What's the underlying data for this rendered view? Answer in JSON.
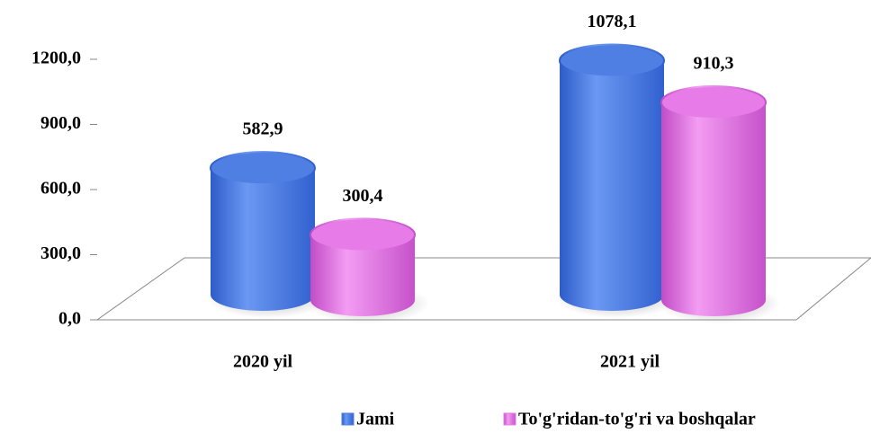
{
  "chart_data": {
    "type": "cylinder-bar",
    "categories": [
      "2020 yil",
      "2021 yil"
    ],
    "series": [
      {
        "name": "Jami",
        "color": "#4f7fe3",
        "values": [
          582.9,
          1078.1
        ],
        "value_labels": [
          "582,9",
          "1078,1"
        ]
      },
      {
        "name": "To'g'ridan-to'g'ri va boshqalar",
        "color": "#e77be8",
        "values": [
          300.4,
          910.3
        ],
        "value_labels": [
          "300,4",
          "910,3"
        ]
      }
    ],
    "ylim": [
      0,
      1200
    ],
    "yticks": [
      {
        "value": 0,
        "label": "0,0"
      },
      {
        "value": 300,
        "label": "300,0"
      },
      {
        "value": 600,
        "label": "600,0"
      },
      {
        "value": 900,
        "label": "900,0"
      },
      {
        "value": 1200,
        "label": "1200,0"
      }
    ],
    "grid": false,
    "legend": "bottom"
  }
}
